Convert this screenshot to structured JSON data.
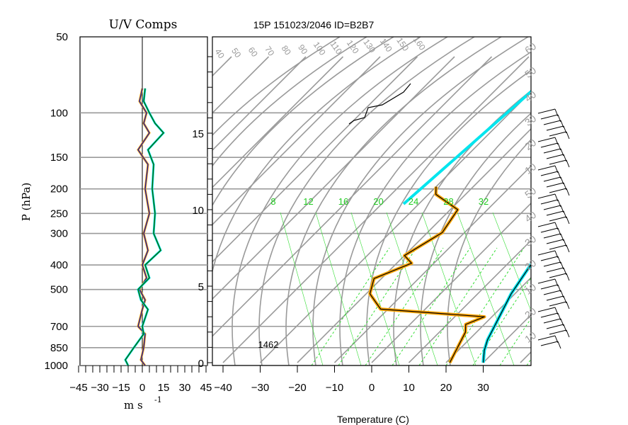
{
  "title": "15P 151023/2046 ID=B2B7",
  "uv_panel": {
    "title": "U/V Comps",
    "ylabel": "P (hPa)",
    "xlabel": "m s",
    "xlabel_exp": "-1",
    "pressure_ticks": [
      "50",
      "100",
      "150",
      "200",
      "250",
      "300",
      "400",
      "500",
      "700",
      "850",
      "1000"
    ],
    "speed_ticks": [
      "−45",
      "−30",
      "−15",
      "0",
      "15",
      "30",
      "45"
    ]
  },
  "skewt": {
    "height_ticks": [
      "0",
      "5",
      "10",
      "15"
    ],
    "temp_ticks": [
      "−40",
      "−30",
      "−20",
      "−10",
      "0",
      "10",
      "20",
      "30"
    ],
    "xlabel": "Temperature (C)",
    "annotation": "1462",
    "mixing_ratio_labels": [
      "8",
      "12",
      "16",
      "20",
      "24",
      "28",
      "32"
    ],
    "isotherm_labels": [
      "40",
      "50",
      "60",
      "70",
      "80",
      "90",
      "100",
      "110",
      "120",
      "130",
      "140",
      "150",
      "160"
    ],
    "adiabat_labels": [
      "60",
      "50",
      "40",
      "30",
      "20",
      "10",
      "50",
      "40",
      "30",
      "20",
      "10",
      "20",
      "10"
    ],
    "colors": {
      "temperature": "#00e5ee",
      "dewpoint": "#ffa500",
      "grid": "#999999",
      "mixing": "#00dd00"
    }
  },
  "chart_data": [
    {
      "type": "line",
      "title": "U/V Comps",
      "xlabel": "m s -1",
      "ylabel": "P (hPa)",
      "xlim": [
        -45,
        45
      ],
      "ylim": [
        1000,
        50
      ],
      "y_scale": "log",
      "series": [
        {
          "x": [
            0,
            -2,
            3,
            1,
            5,
            -3,
            4,
            2,
            5,
            1,
            4,
            0,
            3,
            -2,
            2,
            0,
            -3,
            2,
            1,
            -1,
            2
          ],
          "y": [
            80,
            90,
            100,
            110,
            120,
            140,
            160,
            200,
            250,
            300,
            350,
            400,
            450,
            500,
            550,
            600,
            700,
            750,
            850,
            950,
            1000
          ]
        },
        {
          "x": [
            2,
            1,
            5,
            9,
            15,
            4,
            8,
            7,
            9,
            8,
            13,
            2,
            5,
            -3,
            -1,
            4,
            0,
            1,
            -6,
            -12,
            -10
          ],
          "y": [
            80,
            90,
            100,
            110,
            120,
            140,
            160,
            200,
            250,
            300,
            350,
            400,
            450,
            500,
            550,
            600,
            700,
            750,
            850,
            950,
            1000
          ]
        }
      ]
    },
    {
      "type": "line",
      "title": "15P 151023/2046 ID=B2B7",
      "xlabel": "Temperature (C)",
      "xlim": [
        -40,
        40
      ],
      "series": [
        {
          "x": [
            -22,
            -20,
            -17,
            -12,
            -6,
            0,
            6,
            12,
            15,
            17,
            19,
            22,
            25,
            27,
            30
          ],
          "y": [
            18.5,
            17.5,
            16.5,
            14.5,
            12.5,
            11.0,
            10.0,
            8.5,
            7.5,
            6.0,
            4.5,
            3.0,
            1.5,
            0.8,
            0.0
          ]
        },
        {
          "x": [
            -30,
            -28,
            -18,
            -16,
            -20,
            -16,
            -22,
            -19,
            -12,
            18,
            15,
            17,
            18,
            19,
            21
          ],
          "y": [
            11.5,
            11.0,
            10.0,
            8.5,
            7.0,
            6.5,
            5.5,
            4.5,
            3.5,
            3.0,
            2.5,
            2.0,
            1.5,
            1.0,
            0.0
          ]
        }
      ]
    }
  ]
}
